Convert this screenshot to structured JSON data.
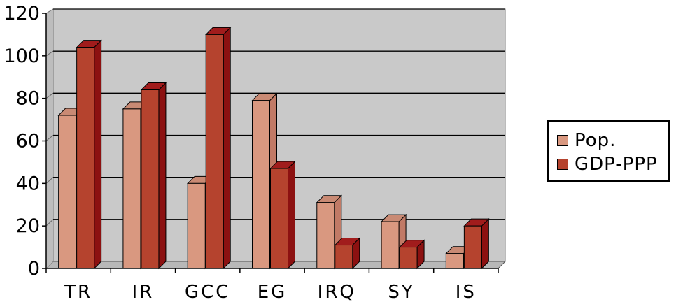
{
  "chart_data": {
    "type": "bar",
    "categories": [
      "TR",
      "IR",
      "GCC",
      "EG",
      "IRQ",
      "SY",
      "IS"
    ],
    "series": [
      {
        "name": "Pop.",
        "values": [
          72,
          75,
          40,
          79,
          31,
          22,
          7
        ],
        "color": "#d99880"
      },
      {
        "name": "GDP-PPP",
        "values": [
          104,
          84,
          110,
          47,
          11,
          10,
          20
        ],
        "color": "#b5432e"
      }
    ],
    "yticks": [
      "0",
      "20",
      "40",
      "60",
      "80",
      "100",
      "120"
    ],
    "ylim": [
      0,
      120
    ],
    "grid": true,
    "legend_position": "right",
    "plot_background": "#c9c9c9",
    "grid_color": "#000000",
    "side_colors": [
      "#c17a66",
      "#8c1111"
    ],
    "top_colors": [
      "#c98a74",
      "#a11c1c"
    ]
  }
}
